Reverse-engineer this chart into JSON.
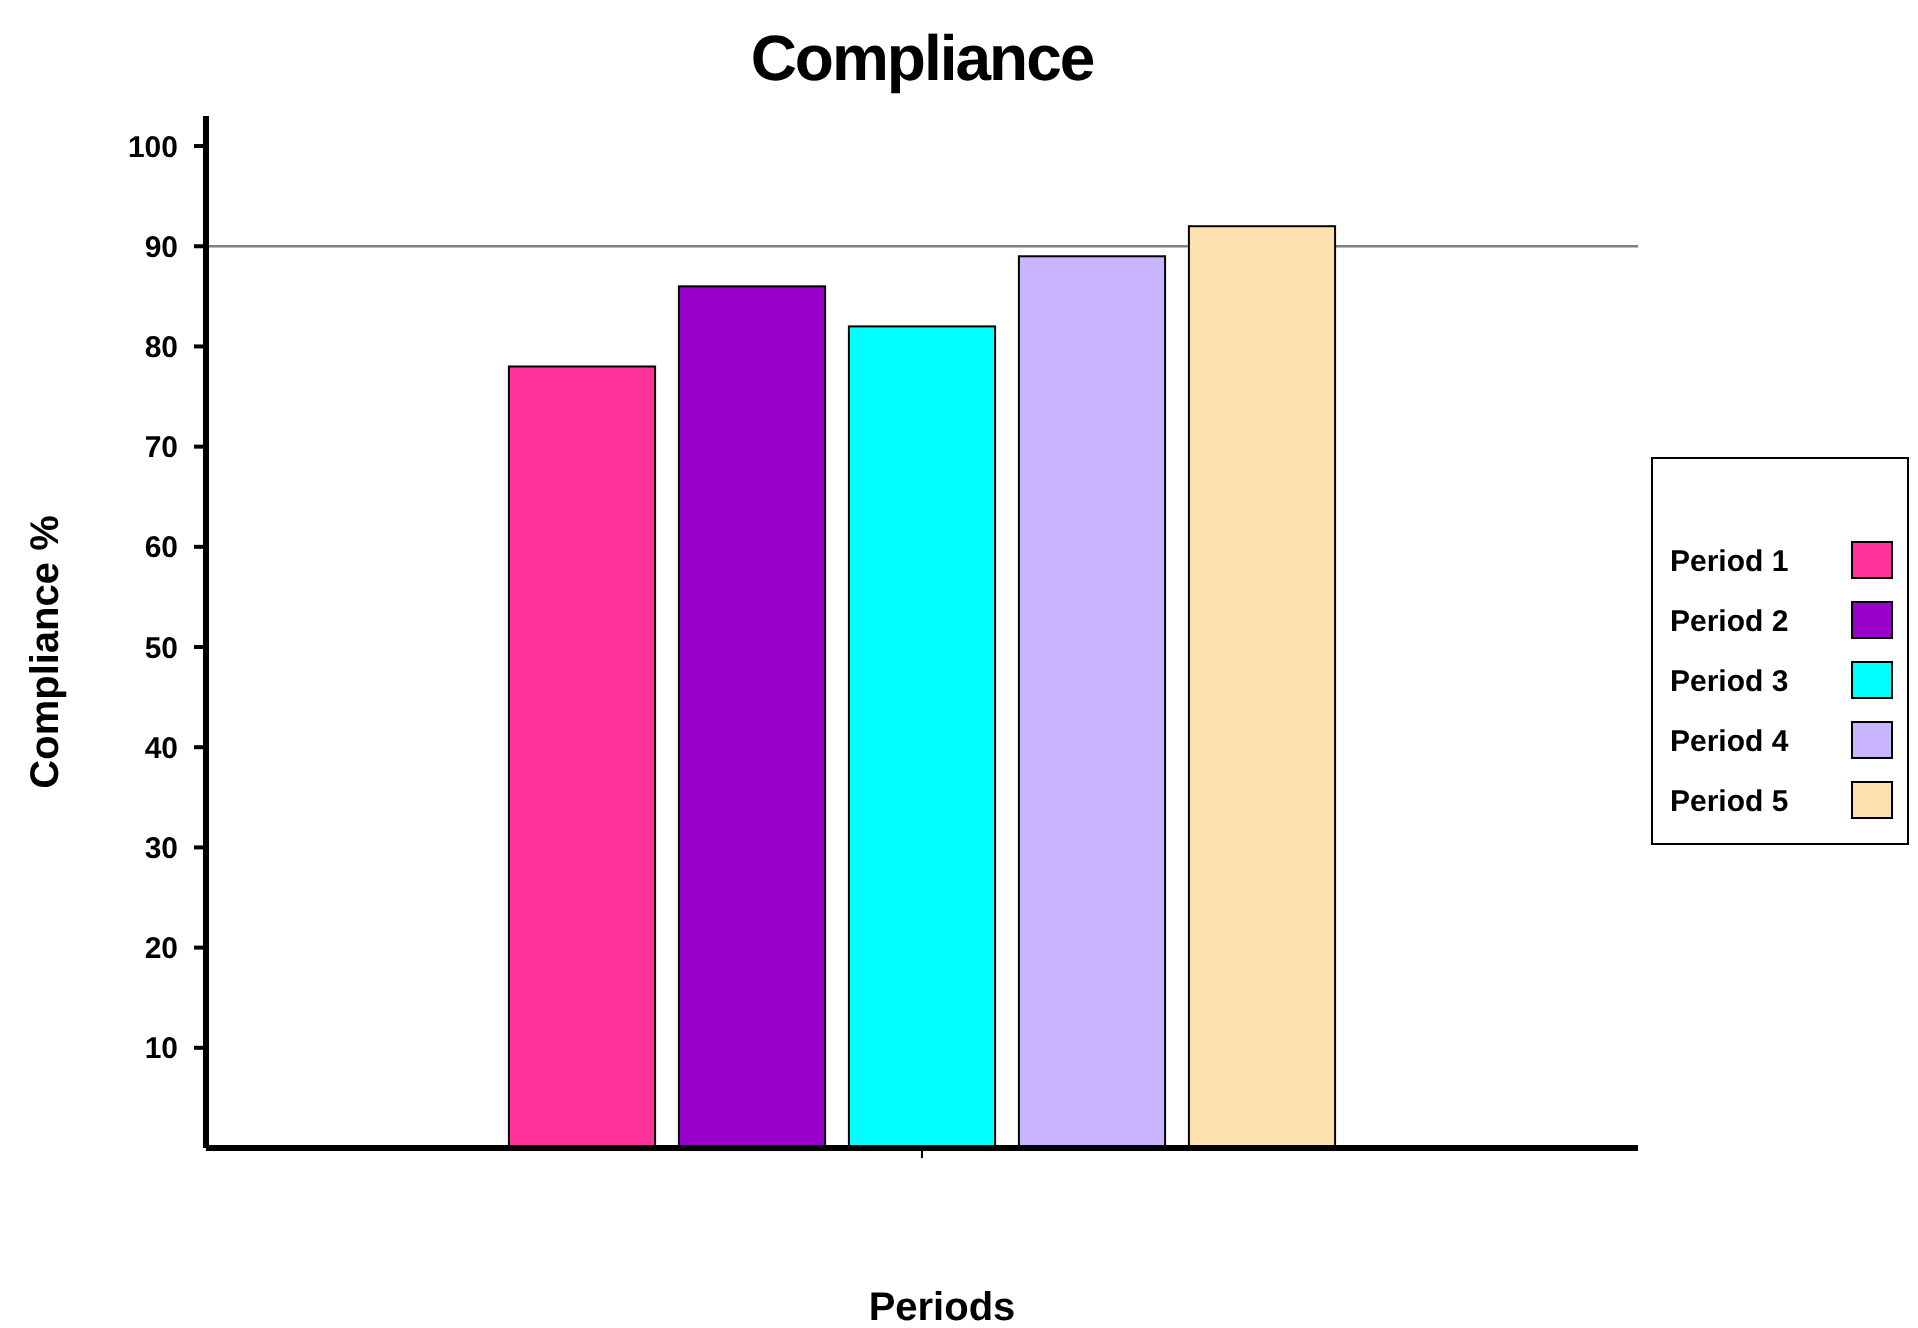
{
  "chart_data": {
    "type": "bar",
    "title": "Compliance",
    "xlabel": "Periods",
    "ylabel": "Compliance %",
    "categories": [
      null
    ],
    "series": [
      {
        "name": "Period 1",
        "color": "#ff3399",
        "values": [
          78
        ]
      },
      {
        "name": "Period 2",
        "color": "#9900cc",
        "values": [
          86
        ]
      },
      {
        "name": "Period 3",
        "color": "#00ffff",
        "values": [
          82
        ]
      },
      {
        "name": "Period 4",
        "color": "#c8b4ff",
        "values": [
          89
        ]
      },
      {
        "name": "Period 5",
        "color": "#fde0b0",
        "values": [
          92
        ]
      }
    ],
    "ylim": [
      0,
      103
    ],
    "yticks": [
      10,
      20,
      30,
      40,
      50,
      60,
      70,
      80,
      90,
      100
    ],
    "ref_lines": [
      {
        "axis": "y",
        "value": 90,
        "color": "#808080"
      }
    ],
    "grid": false,
    "legend": "right"
  }
}
